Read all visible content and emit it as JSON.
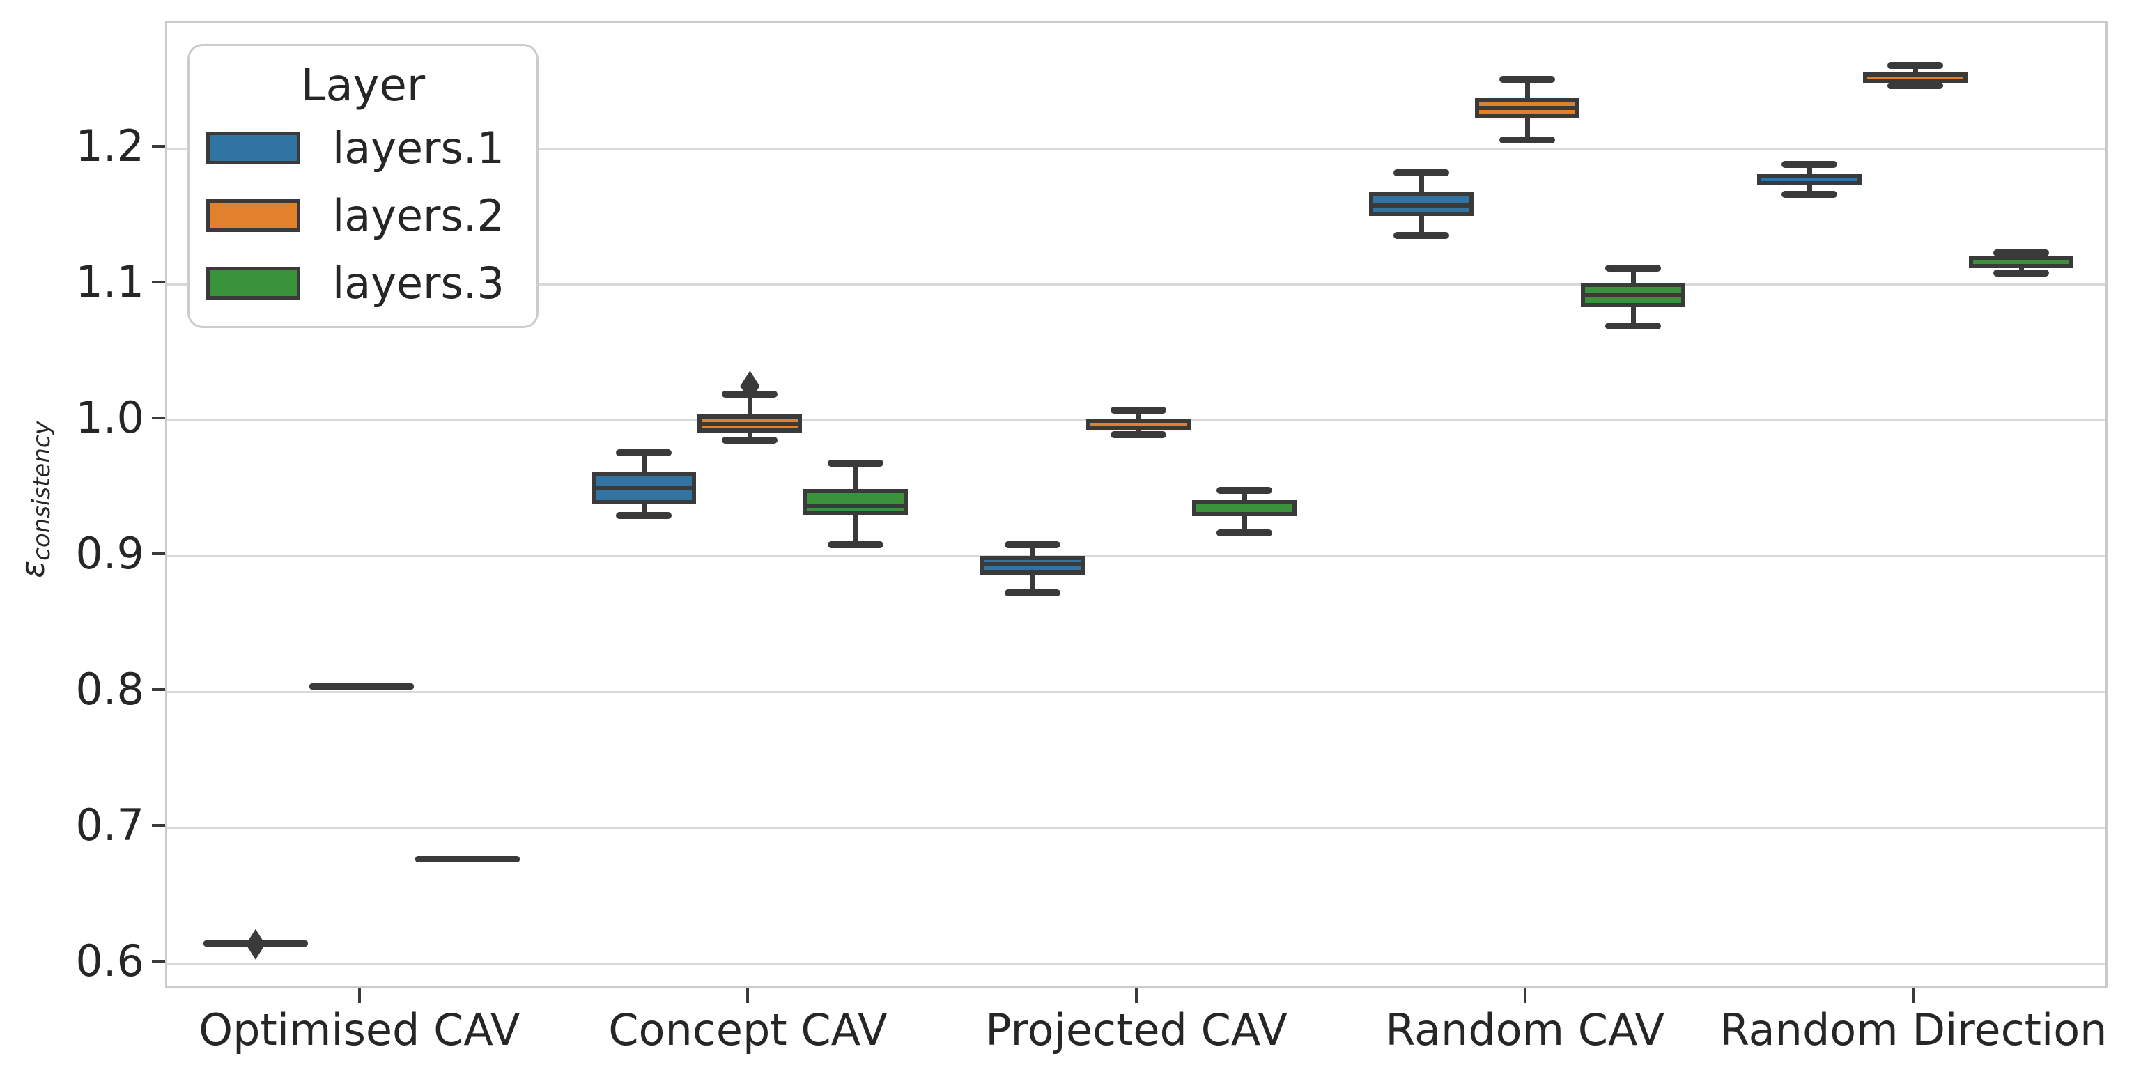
{
  "colors": {
    "background": "#ffffff",
    "box_edge": "#3a3a3a",
    "text": "#262626",
    "gridline": "#d9d9d9",
    "spine": "#cbcbcb",
    "flier": "#3a3a3a",
    "series_blue": "#3274a1",
    "series_orange": "#e1812c",
    "series_green": "#3a923a"
  },
  "chart_data": {
    "type": "boxplot",
    "title": "",
    "xlabel": "",
    "ylabel": "ε_consistency",
    "ylabel_display": {
      "symbol": "ε",
      "subscript": "consistency"
    },
    "grid": "horizontal",
    "ylim": [
      0.58,
      1.292
    ],
    "categories": [
      "Optimised CAV",
      "Concept CAV",
      "Projected CAV",
      "Random CAV",
      "Random Direction"
    ],
    "ytick_values": [
      0.6,
      0.7,
      0.8,
      0.9,
      1.0,
      1.1,
      1.2
    ],
    "ytick_labels": [
      "0.6",
      "0.7",
      "0.8",
      "0.9",
      "1.0",
      "1.1",
      "1.2"
    ],
    "legend": {
      "title": "Layer",
      "position": "upper-left",
      "entries": [
        "layers.1",
        "layers.2",
        "layers.3"
      ]
    },
    "series": [
      {
        "name": "layers.1",
        "color": "#3274a1",
        "boxes": [
          {
            "whislo": 0.615,
            "q1": 0.615,
            "med": 0.615,
            "q3": 0.615,
            "whishi": 0.615,
            "fliers": [
              0.614
            ]
          },
          {
            "whislo": 0.93,
            "q1": 0.938,
            "med": 0.95,
            "q3": 0.962,
            "whishi": 0.976,
            "fliers": []
          },
          {
            "whislo": 0.873,
            "q1": 0.886,
            "med": 0.894,
            "q3": 0.9,
            "whishi": 0.908,
            "fliers": []
          },
          {
            "whislo": 1.136,
            "q1": 1.15,
            "med": 1.158,
            "q3": 1.168,
            "whishi": 1.182,
            "fliers": []
          },
          {
            "whislo": 1.166,
            "q1": 1.173,
            "med": 1.178,
            "q3": 1.181,
            "whishi": 1.188,
            "fliers": []
          }
        ]
      },
      {
        "name": "layers.2",
        "color": "#e1812c",
        "boxes": [
          {
            "whislo": 0.804,
            "q1": 0.804,
            "med": 0.804,
            "q3": 0.804,
            "whishi": 0.804,
            "fliers": []
          },
          {
            "whislo": 0.985,
            "q1": 0.991,
            "med": 0.997,
            "q3": 1.004,
            "whishi": 1.019,
            "fliers": [
              1.025
            ]
          },
          {
            "whislo": 0.989,
            "q1": 0.993,
            "med": 0.997,
            "q3": 1.001,
            "whishi": 1.007,
            "fliers": []
          },
          {
            "whislo": 1.206,
            "q1": 1.222,
            "med": 1.23,
            "q3": 1.237,
            "whishi": 1.251,
            "fliers": []
          },
          {
            "whislo": 1.246,
            "q1": 1.248,
            "med": 1.253,
            "q3": 1.256,
            "whishi": 1.261,
            "fliers": []
          }
        ]
      },
      {
        "name": "layers.3",
        "color": "#3a923a",
        "boxes": [
          {
            "whislo": 0.677,
            "q1": 0.677,
            "med": 0.677,
            "q3": 0.677,
            "whishi": 0.677,
            "fliers": []
          },
          {
            "whislo": 0.908,
            "q1": 0.93,
            "med": 0.937,
            "q3": 0.949,
            "whishi": 0.968,
            "fliers": []
          },
          {
            "whislo": 0.917,
            "q1": 0.929,
            "med": 0.933,
            "q3": 0.941,
            "whishi": 0.948,
            "fliers": []
          },
          {
            "whislo": 1.069,
            "q1": 1.083,
            "med": 1.092,
            "q3": 1.101,
            "whishi": 1.112,
            "fliers": []
          },
          {
            "whislo": 1.108,
            "q1": 1.112,
            "med": 1.115,
            "q3": 1.121,
            "whishi": 1.123,
            "fliers": []
          }
        ]
      }
    ]
  }
}
